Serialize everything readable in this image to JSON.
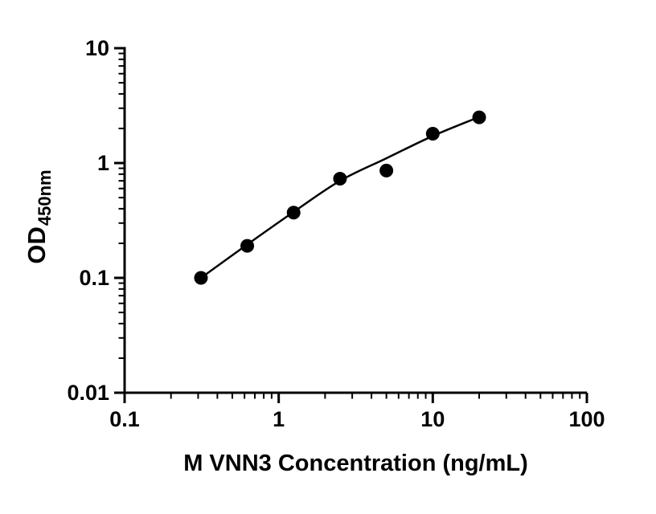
{
  "figure": {
    "background": "#ffffff"
  },
  "chart_data": {
    "type": "scatter",
    "title": "",
    "xlabel": "M VNN3 Concentration (ng/mL)",
    "ylabel": "OD",
    "ylabel_subscript": "450nm",
    "x_scale": "log10",
    "y_scale": "log10",
    "xlim": [
      0.1,
      100
    ],
    "ylim": [
      0.01,
      10
    ],
    "x_major_ticks": [
      0.1,
      1,
      10,
      100
    ],
    "x_tick_labels": [
      "0.1",
      "1",
      "10",
      "100"
    ],
    "y_major_ticks": [
      0.01,
      0.1,
      1,
      10
    ],
    "y_tick_labels": [
      "0.01",
      "0.1",
      "1",
      "10"
    ],
    "minor_ticks": "log decade minors 2-9 on both axes",
    "grid": false,
    "legend": false,
    "axis_color": "#000000",
    "line_color": "#000000",
    "marker": {
      "shape": "circle",
      "color": "#000000",
      "radius_px": 8.5
    },
    "points": [
      {
        "x": 0.313,
        "y": 0.1
      },
      {
        "x": 0.625,
        "y": 0.19
      },
      {
        "x": 1.25,
        "y": 0.37
      },
      {
        "x": 2.5,
        "y": 0.73
      },
      {
        "x": 5,
        "y": 0.86
      },
      {
        "x": 10,
        "y": 1.8
      },
      {
        "x": 20,
        "y": 2.5
      }
    ],
    "fit_curve_points": [
      {
        "x": 0.313,
        "y": 0.1
      },
      {
        "x": 0.625,
        "y": 0.195
      },
      {
        "x": 1.25,
        "y": 0.375
      },
      {
        "x": 2.5,
        "y": 0.7
      },
      {
        "x": 5,
        "y": 1.1
      },
      {
        "x": 10,
        "y": 1.72
      },
      {
        "x": 20,
        "y": 2.52
      }
    ]
  }
}
